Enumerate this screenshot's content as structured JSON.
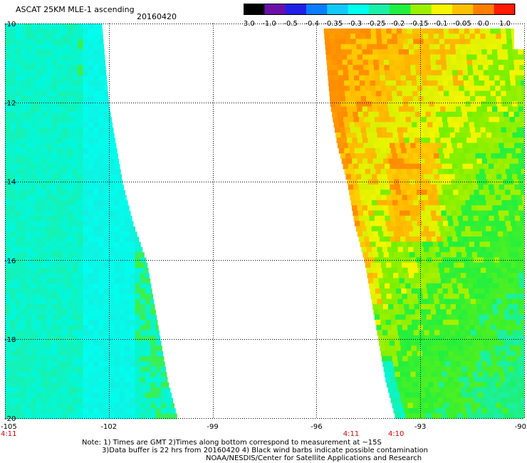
{
  "header": {
    "title": "ASCAT 25KM MLE-1 ascending",
    "date": "20160420"
  },
  "colorbar": {
    "labels": [
      "-3.0",
      "-1.0",
      "-0.5",
      "-0.4",
      "-0.35",
      "-0.3",
      "-0.25",
      "-0.2",
      "-0.15",
      "-0.1",
      "-0.05",
      "0.0",
      "1.0"
    ]
  },
  "chart_data": {
    "type": "heatmap",
    "title": "ASCAT 25KM MLE-1 ascending",
    "date": "20160420",
    "xlim": [
      -105,
      -90
    ],
    "ylim": [
      -20,
      -10
    ],
    "x_ticks": [
      "-105",
      "-102",
      "-99",
      "-96",
      "-93",
      "-90"
    ],
    "y_ticks": [
      "-10",
      "-12",
      "-14",
      "-16",
      "-18",
      "-20"
    ],
    "time_labels": [
      {
        "lon": -105,
        "text": "4:11"
      },
      {
        "lon": -95,
        "text": "4:11"
      },
      {
        "lon": -93.7,
        "text": "4:10"
      }
    ],
    "colorscale": [
      "#000000",
      "#6a0fa8",
      "#2020e8",
      "#0a7cff",
      "#11c8ff",
      "#00fff0",
      "#1bf0a8",
      "#20f040",
      "#9af000",
      "#f6f600",
      "#ffc000",
      "#ff7e00",
      "#ff1a00"
    ],
    "swaths": [
      {
        "name": "west-swath",
        "lon_west": -105,
        "east_edge": [
          [
            -10,
            -102.2
          ],
          [
            -12,
            -102.0
          ],
          [
            -13,
            -101.8
          ],
          [
            -14,
            -101.6
          ],
          [
            -15,
            -101.3
          ],
          [
            -16,
            -100.9
          ],
          [
            -17,
            -100.7
          ],
          [
            -18,
            -100.5
          ],
          [
            -19,
            -100.3
          ],
          [
            -20,
            -100.0
          ]
        ],
        "dominant_mle": -0.25
      },
      {
        "name": "east-swath",
        "lon_east": -90,
        "west_edge": [
          [
            -10,
            -95.8
          ],
          [
            -12,
            -95.6
          ],
          [
            -13,
            -95.4
          ],
          [
            -14,
            -95.1
          ],
          [
            -15,
            -94.9
          ],
          [
            -16,
            -94.6
          ],
          [
            -17,
            -94.4
          ],
          [
            -18,
            -94.2
          ],
          [
            -19,
            -94.0
          ],
          [
            -20,
            -93.7
          ]
        ],
        "north_mle": -0.05,
        "south_mle": -0.2
      }
    ]
  },
  "notes": {
    "line1": "Note: 1) Times are GMT 2)Times along bottom correspond to measurement at ~15S",
    "line2": "3)Data buffer is 22 hrs from 20160420 4) Black wind barbs indicate possible contamination",
    "line3": "NOAA/NESDIS/Center for Satellite Applications and Research"
  }
}
